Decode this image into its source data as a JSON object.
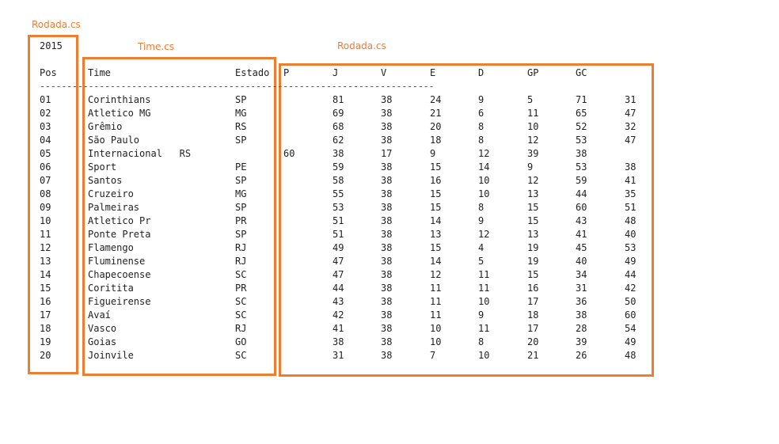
{
  "annotations": {
    "rodada_left": "Rodada.cs",
    "time": "Time.cs",
    "rodada_right": "Rodada.cs"
  },
  "year": "2015",
  "headers": {
    "pos": "Pos",
    "time": "Time",
    "estado": "Estado",
    "p": "P",
    "j": "J",
    "v": "V",
    "e": "E",
    "d": "D",
    "gp": "GP",
    "gc": "GC"
  },
  "separator": "-------------------------------------------------------------------------",
  "rows": [
    {
      "pos": "01",
      "time": "Corinthians",
      "estado": "SP",
      "stats": [
        "81",
        "38",
        "24",
        "9",
        "5",
        "71",
        "31"
      ]
    },
    {
      "pos": "02",
      "time": "Atletico MG",
      "estado": "MG",
      "stats": [
        "69",
        "38",
        "21",
        "6",
        "11",
        "65",
        "47"
      ]
    },
    {
      "pos": "03",
      "time": "Grêmio",
      "estado": "RS",
      "stats": [
        "68",
        "38",
        "20",
        "8",
        "10",
        "52",
        "32"
      ]
    },
    {
      "pos": "04",
      "time": "São Paulo",
      "estado": "SP",
      "stats": [
        "62",
        "38",
        "18",
        "8",
        "12",
        "53",
        "47"
      ]
    },
    {
      "pos": "05",
      "time": "Internacional   RS",
      "estado": "",
      "p_col": "60",
      "stats": [
        "38",
        "17",
        "9",
        "12",
        "39",
        "38"
      ]
    },
    {
      "pos": "06",
      "time": "Sport",
      "estado": "PE",
      "stats": [
        "59",
        "38",
        "15",
        "14",
        "9",
        "53",
        "38"
      ]
    },
    {
      "pos": "07",
      "time": "Santos",
      "estado": "SP",
      "stats": [
        "58",
        "38",
        "16",
        "10",
        "12",
        "59",
        "41"
      ]
    },
    {
      "pos": "08",
      "time": "Cruzeiro",
      "estado": "MG",
      "stats": [
        "55",
        "38",
        "15",
        "10",
        "13",
        "44",
        "35"
      ]
    },
    {
      "pos": "09",
      "time": "Palmeiras",
      "estado": "SP",
      "stats": [
        "53",
        "38",
        "15",
        "8",
        "15",
        "60",
        "51"
      ]
    },
    {
      "pos": "10",
      "time": "Atletico Pr",
      "estado": "PR",
      "stats": [
        "51",
        "38",
        "14",
        "9",
        "15",
        "43",
        "48"
      ]
    },
    {
      "pos": "11",
      "time": "Ponte Preta",
      "estado": "SP",
      "stats": [
        "51",
        "38",
        "13",
        "12",
        "13",
        "41",
        "40"
      ]
    },
    {
      "pos": "12",
      "time": "Flamengo",
      "estado": "RJ",
      "stats": [
        "49",
        "38",
        "15",
        "4",
        "19",
        "45",
        "53"
      ]
    },
    {
      "pos": "13",
      "time": "Fluminense",
      "estado": "RJ",
      "stats": [
        "47",
        "38",
        "14",
        "5",
        "19",
        "40",
        "49"
      ]
    },
    {
      "pos": "14",
      "time": "Chapecoense",
      "estado": "SC",
      "stats": [
        "47",
        "38",
        "12",
        "11",
        "15",
        "34",
        "44"
      ]
    },
    {
      "pos": "15",
      "time": "Coritita",
      "estado": "PR",
      "stats": [
        "44",
        "38",
        "11",
        "11",
        "16",
        "31",
        "42"
      ]
    },
    {
      "pos": "16",
      "time": "Figueirense",
      "estado": "SC",
      "stats": [
        "43",
        "38",
        "11",
        "10",
        "17",
        "36",
        "50"
      ]
    },
    {
      "pos": "17",
      "time": "Avaí",
      "estado": "SC",
      "stats": [
        "42",
        "38",
        "11",
        "9",
        "18",
        "38",
        "60"
      ]
    },
    {
      "pos": "18",
      "time": "Vasco",
      "estado": "RJ",
      "stats": [
        "41",
        "38",
        "10",
        "11",
        "17",
        "28",
        "54"
      ]
    },
    {
      "pos": "19",
      "time": "Goias",
      "estado": "GO",
      "stats": [
        "38",
        "38",
        "10",
        "8",
        "20",
        "39",
        "49"
      ]
    },
    {
      "pos": "20",
      "time": "Joinvile",
      "estado": "SC",
      "stats": [
        "31",
        "38",
        "7",
        "10",
        "21",
        "26",
        "48"
      ]
    }
  ],
  "colors": {
    "annotation": "#ED7D31",
    "text": "#222222"
  }
}
